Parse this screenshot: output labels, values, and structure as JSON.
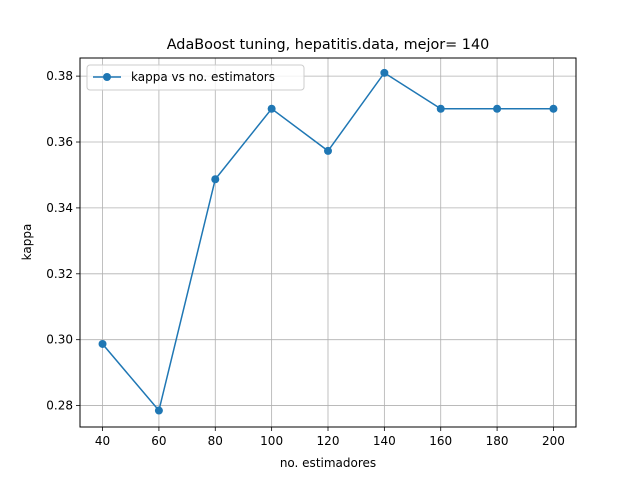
{
  "chart_data": {
    "type": "line",
    "title": "AdaBoost tuning, hepatitis.data, mejor= 140",
    "xlabel": "no. estimadores",
    "ylabel": "kappa",
    "x": [
      40,
      60,
      80,
      100,
      120,
      140,
      160,
      180,
      200
    ],
    "xticks": [
      "40",
      "60",
      "80",
      "100",
      "120",
      "140",
      "160",
      "180",
      "200"
    ],
    "yticks": [
      "0.28",
      "0.30",
      "0.32",
      "0.34",
      "0.36",
      "0.38"
    ],
    "ytick_values": [
      0.28,
      0.3,
      0.32,
      0.34,
      0.36,
      0.38
    ],
    "xlim": [
      32,
      208
    ],
    "ylim": [
      0.2735,
      0.3855
    ],
    "grid": true,
    "legend_position": "top-left",
    "series": [
      {
        "name": "kappa vs no. estimators",
        "color": "#1f77b4",
        "marker": "circle",
        "values": [
          0.2987,
          0.2785,
          0.3487,
          0.3701,
          0.3573,
          0.381,
          0.3701,
          0.3701,
          0.3701
        ]
      }
    ]
  }
}
